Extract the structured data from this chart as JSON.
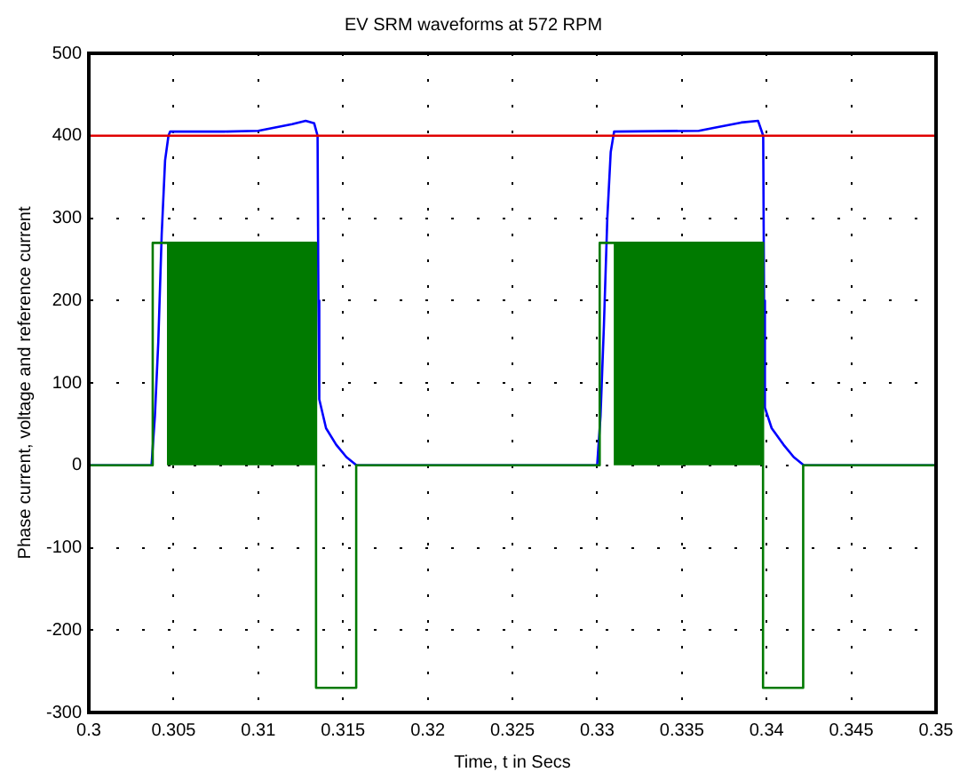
{
  "chart_data": {
    "type": "line",
    "title": "EV SRM waveforms at 572 RPM",
    "xlabel": "Time, t in Secs",
    "ylabel": "Phase current, voltage and reference current",
    "xlim": [
      0.3,
      0.35
    ],
    "xticks": [
      0.3,
      0.305,
      0.31,
      0.315,
      0.32,
      0.325,
      0.33,
      0.335,
      0.34,
      0.345,
      0.35
    ],
    "ylim": [
      -300,
      500
    ],
    "yticks": [
      -300,
      -200,
      -100,
      0,
      100,
      200,
      300,
      400,
      500
    ],
    "grid": true,
    "legend": false,
    "marker": "none",
    "line_style": "solid",
    "series": [
      {
        "color": "#e00000",
        "x": [
          0.3,
          0.35
        ],
        "values": [
          400,
          400
        ]
      },
      {
        "color": "#007a00",
        "x": [
          0.3,
          0.30377,
          0.30377,
          0.30461,
          0.31341,
          0.31341,
          0.31578,
          0.31578,
          0.33015,
          0.33015,
          0.33098,
          0.33979,
          0.33979,
          0.34216,
          0.34216,
          0.35
        ],
        "values": [
          0,
          0,
          270,
          270,
          270,
          -270,
          -270,
          0,
          0,
          270,
          270,
          270,
          -270,
          -270,
          0,
          0
        ],
        "lower": [
          null,
          null,
          null,
          0,
          0,
          null,
          null,
          null,
          null,
          null,
          0,
          0,
          null,
          null,
          null,
          null
        ],
        "upper": [
          null,
          null,
          null,
          270,
          270,
          null,
          null,
          null,
          null,
          null,
          270,
          270,
          null,
          null,
          null,
          null
        ]
      },
      {
        "color": "#0000ff",
        "x": [
          0.3,
          0.3037,
          0.3039,
          0.3041,
          0.3043,
          0.3045,
          0.3047,
          0.3048,
          0.308,
          0.31,
          0.311,
          0.312,
          0.3128,
          0.3133,
          0.3135,
          0.31355,
          0.3136,
          0.314,
          0.3146,
          0.3152,
          0.3158,
          0.33,
          0.3302,
          0.3304,
          0.3306,
          0.3308,
          0.331,
          0.336,
          0.337,
          0.3385,
          0.3395,
          0.3398,
          0.33985,
          0.3399,
          0.3403,
          0.341,
          0.3416,
          0.3422,
          0.35
        ],
        "values": [
          0,
          0,
          60,
          150,
          280,
          370,
          400,
          405,
          405,
          406,
          410,
          414,
          418,
          415,
          400,
          200,
          80,
          45,
          25,
          10,
          0,
          0,
          60,
          170,
          300,
          380,
          405,
          406,
          410,
          416,
          418,
          400,
          200,
          70,
          45,
          25,
          10,
          0,
          0
        ]
      }
    ]
  }
}
